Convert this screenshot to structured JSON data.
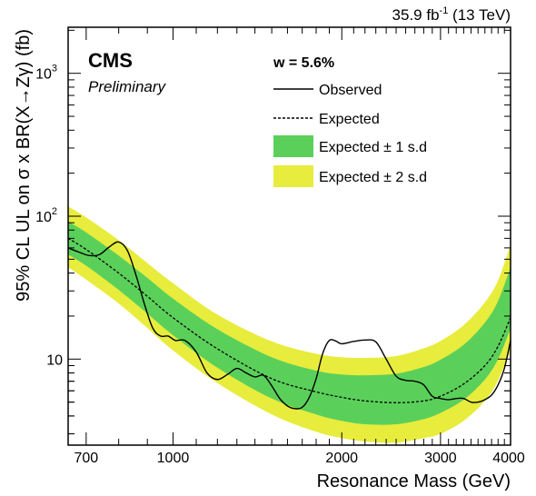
{
  "chart_data": {
    "type": "line",
    "title": "",
    "lumi_label": {
      "value": "35.9 fb",
      "sup": "-1",
      "suffix": " (13 TeV)"
    },
    "experiment": "CMS",
    "status": "Preliminary",
    "width_label": "w = 5.6%",
    "xlabel": "Resonance Mass (GeV)",
    "ylabel": "95% CL UL on σ x BR(X→Zγ) (fb)",
    "x_scale": "log",
    "y_scale": "log",
    "xlim": [
      650,
      4000
    ],
    "ylim": [
      2.5,
      2100
    ],
    "x_ticks": [
      {
        "value": 700,
        "label": "700"
      },
      {
        "value": 1000,
        "label": "1000"
      },
      {
        "value": 2000,
        "label": "2000"
      },
      {
        "value": 3000,
        "label": "3000"
      },
      {
        "value": 4000,
        "label": "4000"
      }
    ],
    "y_ticks": [
      {
        "value": 10,
        "label": "10",
        "sup": ""
      },
      {
        "value": 100,
        "label": "10",
        "sup": "2"
      },
      {
        "value": 1000,
        "label": "10",
        "sup": "3"
      }
    ],
    "legend_position": "top-right",
    "colors": {
      "band_2sd": "#e8ec3c",
      "band_1sd": "#5ad05a"
    },
    "series": [
      {
        "name": "Expected ± 2 s.d",
        "kind": "band2",
        "x": [
          650,
          700,
          800,
          900,
          1000,
          1200,
          1500,
          1800,
          2000,
          2200,
          2500,
          2800,
          3000,
          3300,
          3600,
          3800,
          4000
        ],
        "low": [
          44,
          36,
          24.5,
          16.5,
          11.5,
          6.8,
          4.1,
          3.1,
          2.8,
          2.65,
          2.6,
          2.8,
          3.0,
          3.7,
          5.1,
          7.1,
          11.5
        ],
        "high": [
          117,
          98,
          68,
          47,
          34,
          20.5,
          13.3,
          10.9,
          10.3,
          10.2,
          10.5,
          11.9,
          13.4,
          17.3,
          25,
          35.5,
          63
        ]
      },
      {
        "name": "Expected ± 1 s.d",
        "kind": "band1",
        "x": [
          650,
          700,
          800,
          900,
          1000,
          1200,
          1500,
          1800,
          2000,
          2200,
          2500,
          2800,
          3000,
          3300,
          3600,
          3800,
          4000
        ],
        "low": [
          54,
          45,
          30.5,
          20.8,
          14.7,
          8.7,
          5.3,
          4.1,
          3.7,
          3.5,
          3.5,
          3.8,
          4.2,
          5.2,
          7.2,
          10.0,
          16.3
        ],
        "high": [
          92,
          77,
          53,
          37,
          26.5,
          16.2,
          10.3,
          8.3,
          7.8,
          7.7,
          7.9,
          8.8,
          9.9,
          12.6,
          18.0,
          25.5,
          44
        ]
      },
      {
        "name": "Expected",
        "kind": "expected",
        "x": [
          650,
          700,
          800,
          900,
          1000,
          1200,
          1500,
          1800,
          2000,
          2200,
          2500,
          2800,
          3000,
          3300,
          3600,
          3800,
          4000
        ],
        "y": [
          70,
          58.5,
          40,
          27.5,
          19.5,
          11.8,
          7.3,
          5.9,
          5.4,
          5.1,
          4.95,
          5.1,
          5.5,
          6.7,
          9.0,
          12.3,
          19.5
        ]
      },
      {
        "name": "Observed",
        "kind": "observed",
        "x": [
          650,
          680,
          710,
          740,
          770,
          800,
          830,
          860,
          890,
          920,
          950,
          980,
          1010,
          1050,
          1100,
          1150,
          1200,
          1250,
          1300,
          1350,
          1400,
          1450,
          1500,
          1550,
          1600,
          1650,
          1700,
          1750,
          1800,
          1850,
          1900,
          1950,
          2000,
          2100,
          2200,
          2300,
          2400,
          2500,
          2600,
          2700,
          2800,
          2900,
          3000,
          3100,
          3200,
          3300,
          3400,
          3500,
          3600,
          3700,
          3800,
          3900,
          4000
        ],
        "y": [
          60,
          56,
          53,
          54,
          61,
          66,
          57,
          38,
          24,
          16.5,
          14.5,
          14.5,
          13.5,
          13.5,
          11.2,
          8.0,
          7.2,
          7.8,
          8.6,
          8.0,
          7.5,
          7.7,
          6.5,
          5.3,
          4.7,
          4.5,
          4.6,
          5.4,
          7.3,
          11,
          13.5,
          13.4,
          12.8,
          13.3,
          13.6,
          13.2,
          10,
          7.6,
          7.1,
          7.0,
          6.6,
          5.5,
          5.3,
          5.2,
          5.3,
          5.3,
          5.0,
          5.0,
          5.2,
          5.6,
          6.6,
          8.6,
          13.5
        ]
      }
    ]
  }
}
